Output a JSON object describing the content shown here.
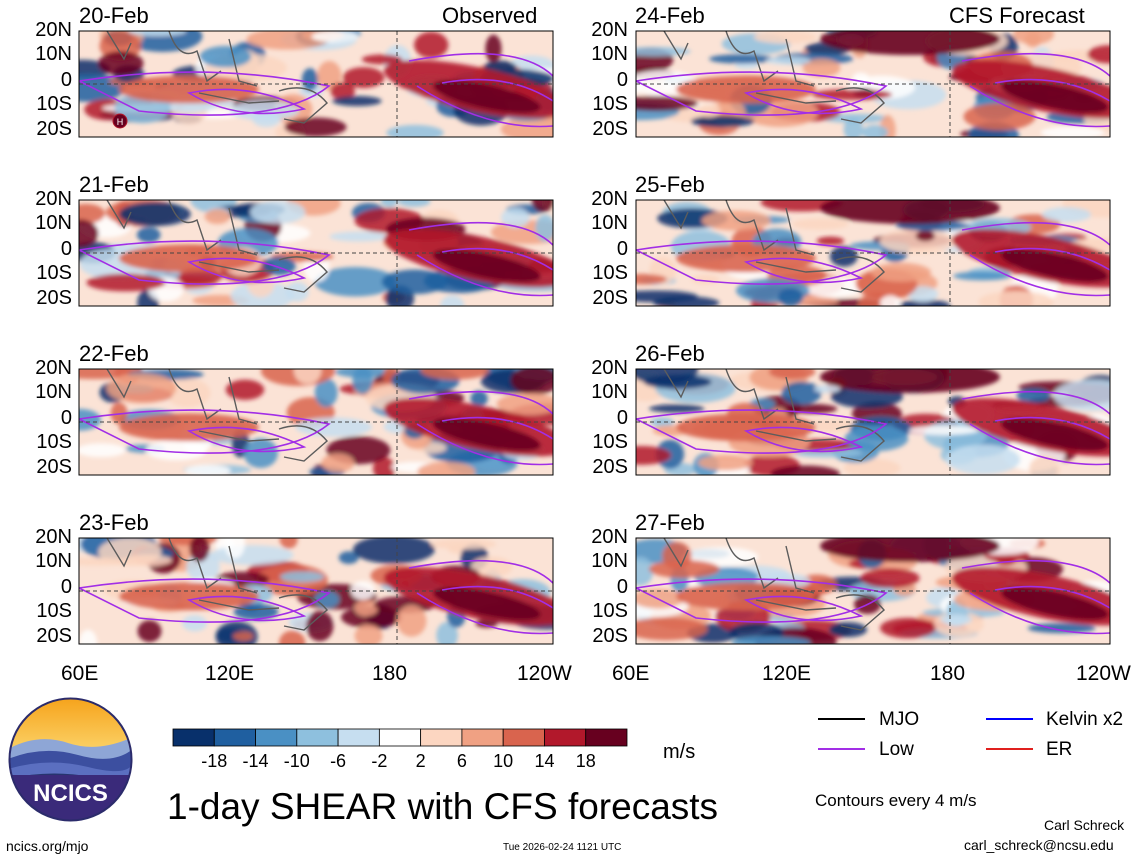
{
  "title": "1-day SHEAR with CFS forecasts",
  "observed_label": "Observed",
  "forecast_label": "CFS Forecast",
  "panels": {
    "observed": [
      "20-Feb",
      "21-Feb",
      "22-Feb",
      "23-Feb"
    ],
    "forecast": [
      "24-Feb",
      "25-Feb",
      "26-Feb",
      "27-Feb"
    ]
  },
  "lat_labels": [
    "20N",
    "10N",
    "0",
    "10S",
    "20S"
  ],
  "lon_labels": [
    "60E",
    "120E",
    "180",
    "120W"
  ],
  "colorbar": {
    "unit": "m/s",
    "ticks": [
      "-18",
      "-14",
      "-10",
      "-6",
      "-2",
      "2",
      "6",
      "10",
      "14",
      "18"
    ],
    "colors": [
      "#08306b",
      "#1f5fa0",
      "#4a90c4",
      "#8ec0de",
      "#c6def0",
      "#ffffff",
      "#fcd6c1",
      "#f0a183",
      "#d9644e",
      "#b2182b",
      "#67001f"
    ]
  },
  "legend": {
    "items": [
      {
        "label": "MJO",
        "color": "#000000"
      },
      {
        "label": "Kelvin x2",
        "color": "#0000ff"
      },
      {
        "label": "Low",
        "color": "#a22ee6"
      },
      {
        "label": "ER",
        "color": "#e0201e"
      }
    ],
    "contour_note": "Contours every 4 m/s"
  },
  "map_marker": "H",
  "logo_text": "NCICS",
  "footer": {
    "url": "ncics.org/mjo",
    "timestamp": "Tue 2026-02-24 1121 UTC",
    "author": "Carl Schreck",
    "email": "carl_schreck@ncsu.edu"
  }
}
